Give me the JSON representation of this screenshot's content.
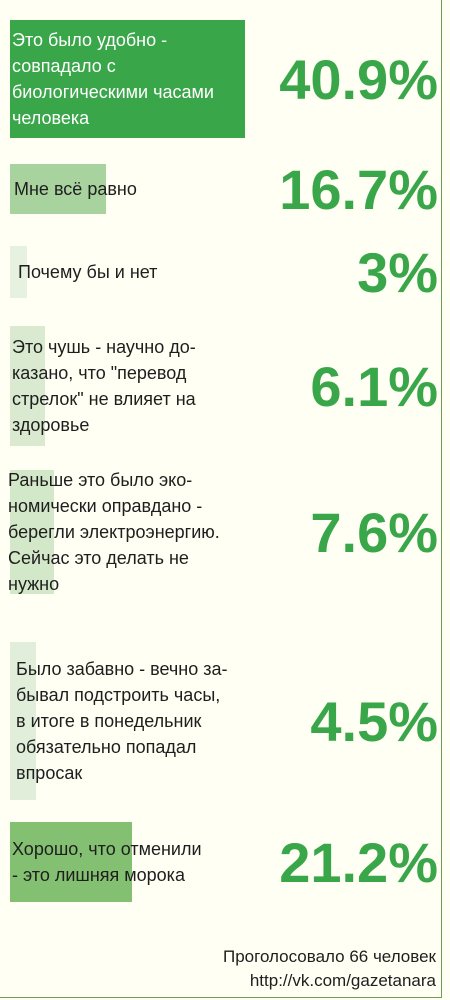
{
  "chart_data": {
    "type": "bar",
    "categories": [
      "Это было удобно - совпадало с биологическими часами человека",
      "Мне всё равно",
      "Почему бы и нет",
      "Это чушь - научно доказано, что \"перевод стрелок\" не влияет на здоровье",
      "Раньше это было экономически оправдано - берегли электроэнергию. Сейчас это делать не нужно",
      "Было забавно - вечно забывал подстроить часы, в итоге в понедельник обязательно попадал впросак",
      "Хорошо, что отменили - это лишняя морока"
    ],
    "values": [
      40.9,
      16.7,
      3,
      6.1,
      7.6,
      4.5,
      21.2
    ],
    "colors": [
      "#3aa64a",
      "#a9d39e",
      "#e6f1df",
      "#d9ead0",
      "#d3e8c8",
      "#e1eeda",
      "#84c072"
    ]
  },
  "items": [
    {
      "label": "Это было удобно -\nсовпадало с\nбиологическими часами\nчеловека",
      "value_text": "40.9%"
    },
    {
      "label": "Мне всё равно",
      "value_text": "16.7%"
    },
    {
      "label": "Почему бы и нет",
      "value_text": "3%"
    },
    {
      "label": "Это чушь - научно до-\nказано, что \"перевод\nстрелок\" не влияет на\nздоровье",
      "value_text": "6.1%"
    },
    {
      "label": "Раньше это было эко-\nномически оправдано -\nберегли электроэнергию.\nСейчас это делать не\nнужно",
      "value_text": "7.6%"
    },
    {
      "label": "Было забавно - вечно за-\nбывал подстроить часы,\nв итоге в понедельник\nобязательно попадал\nвпросак",
      "value_text": "4.5%"
    },
    {
      "label": "Хорошо, что отменили\n- это лишняя морока",
      "value_text": "21.2%"
    }
  ],
  "footer": {
    "votes": "Проголосовало 66 человек",
    "source": "http://vk.com/gazetanara"
  }
}
